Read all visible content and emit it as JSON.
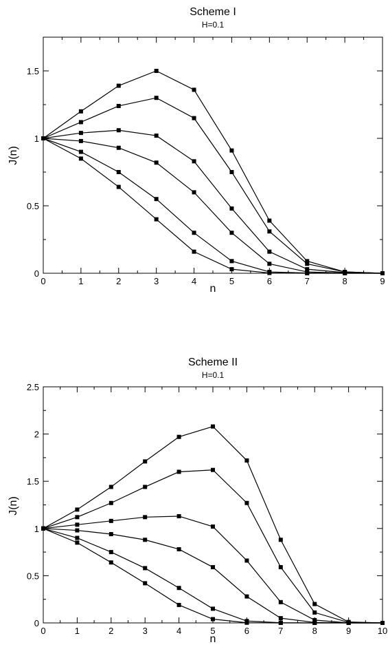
{
  "chart_data": [
    {
      "type": "line",
      "title": "Scheme I",
      "subtitle": "H=0.1",
      "xlabel": "n",
      "ylabel": "J(n)",
      "xlim": [
        0,
        9
      ],
      "ylim": [
        0,
        1.75
      ],
      "xticks": [
        "0",
        "1",
        "2",
        "3",
        "4",
        "5",
        "6",
        "7",
        "8",
        "9"
      ],
      "yticks": [
        {
          "value": 0,
          "label": "0"
        },
        {
          "value": 0.5,
          "label": "0.5"
        },
        {
          "value": 1,
          "label": "1"
        },
        {
          "value": 1.5,
          "label": "1.5"
        }
      ],
      "x": [
        0,
        1,
        2,
        3,
        4,
        5,
        6,
        7,
        8,
        9
      ],
      "series": [
        {
          "values": [
            1,
            1.2,
            1.39,
            1.5,
            1.36,
            0.91,
            0.39,
            0.09,
            0.01,
            0
          ]
        },
        {
          "values": [
            1,
            1.12,
            1.24,
            1.3,
            1.15,
            0.75,
            0.31,
            0.07,
            0.01,
            0
          ]
        },
        {
          "values": [
            1,
            1.04,
            1.06,
            1.02,
            0.83,
            0.48,
            0.16,
            0.03,
            0.005,
            0
          ]
        },
        {
          "values": [
            1,
            0.98,
            0.93,
            0.82,
            0.6,
            0.3,
            0.07,
            0.01,
            0.002,
            0
          ]
        },
        {
          "values": [
            1,
            0.9,
            0.75,
            0.55,
            0.3,
            0.09,
            0.01,
            0.002,
            0,
            0
          ]
        },
        {
          "values": [
            1,
            0.85,
            0.64,
            0.4,
            0.16,
            0.03,
            0.002,
            0,
            0,
            0
          ]
        }
      ]
    },
    {
      "type": "line",
      "title": "Scheme II",
      "subtitle": "H=0.1",
      "xlabel": "n",
      "ylabel": "J(n)",
      "xlim": [
        0,
        10
      ],
      "ylim": [
        0,
        2.5
      ],
      "xticks": [
        "0",
        "1",
        "2",
        "3",
        "4",
        "5",
        "6",
        "7",
        "8",
        "9",
        "10"
      ],
      "yticks": [
        {
          "value": 0,
          "label": "0"
        },
        {
          "value": 0.5,
          "label": "0.5"
        },
        {
          "value": 1,
          "label": "1"
        },
        {
          "value": 1.5,
          "label": "1.5"
        },
        {
          "value": 2,
          "label": "2"
        },
        {
          "value": 2.5,
          "label": "2.5"
        }
      ],
      "x": [
        0,
        1,
        2,
        3,
        4,
        5,
        6,
        7,
        8,
        9,
        10
      ],
      "series": [
        {
          "values": [
            1,
            1.2,
            1.44,
            1.71,
            1.97,
            2.08,
            1.72,
            0.88,
            0.2,
            0.01,
            0
          ]
        },
        {
          "values": [
            1,
            1.12,
            1.27,
            1.44,
            1.6,
            1.62,
            1.27,
            0.59,
            0.11,
            0.005,
            0
          ]
        },
        {
          "values": [
            1,
            1.04,
            1.08,
            1.12,
            1.13,
            1.02,
            0.66,
            0.22,
            0.03,
            0,
            0
          ]
        },
        {
          "values": [
            1,
            0.98,
            0.94,
            0.88,
            0.78,
            0.59,
            0.28,
            0.05,
            0.005,
            0,
            0
          ]
        },
        {
          "values": [
            1,
            0.9,
            0.75,
            0.58,
            0.37,
            0.15,
            0.02,
            0.002,
            0,
            0,
            0
          ]
        },
        {
          "values": [
            1,
            0.85,
            0.64,
            0.42,
            0.19,
            0.04,
            0.002,
            0,
            0,
            0,
            0
          ]
        }
      ]
    }
  ]
}
